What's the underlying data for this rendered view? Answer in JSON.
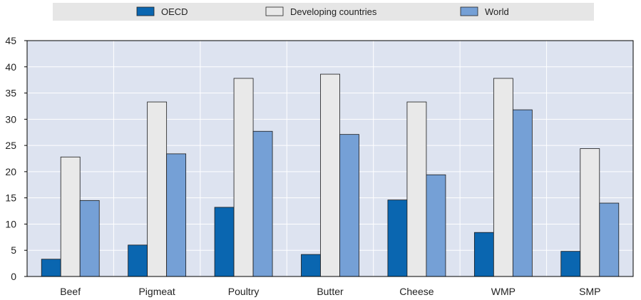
{
  "chart_data": {
    "type": "bar",
    "title": "",
    "xlabel": "",
    "ylabel": "",
    "ylim": [
      0,
      45
    ],
    "yticks": [
      0,
      5,
      10,
      15,
      20,
      25,
      30,
      35,
      40,
      45
    ],
    "grid": true,
    "legend_position": "top",
    "categories": [
      "Beef",
      "Pigmeat",
      "Poultry",
      "Butter",
      "Cheese",
      "WMP",
      "SMP"
    ],
    "series": [
      {
        "name": "OECD",
        "color": "#0a66b0",
        "values": [
          3.3,
          6.0,
          13.2,
          4.2,
          14.6,
          8.4,
          4.8
        ]
      },
      {
        "name": "Developing countries",
        "color": "#e9e9e9",
        "values": [
          22.8,
          33.3,
          37.8,
          38.6,
          33.3,
          37.8,
          24.4
        ]
      },
      {
        "name": "World",
        "color": "#75a0d6",
        "values": [
          14.5,
          23.4,
          27.7,
          27.1,
          19.4,
          31.8,
          14.0
        ]
      }
    ],
    "colors": {
      "plot_background": "#dde3f0",
      "legend_background": "#e6e6e6",
      "grid": "#ffffff",
      "axis": "#000000"
    }
  }
}
